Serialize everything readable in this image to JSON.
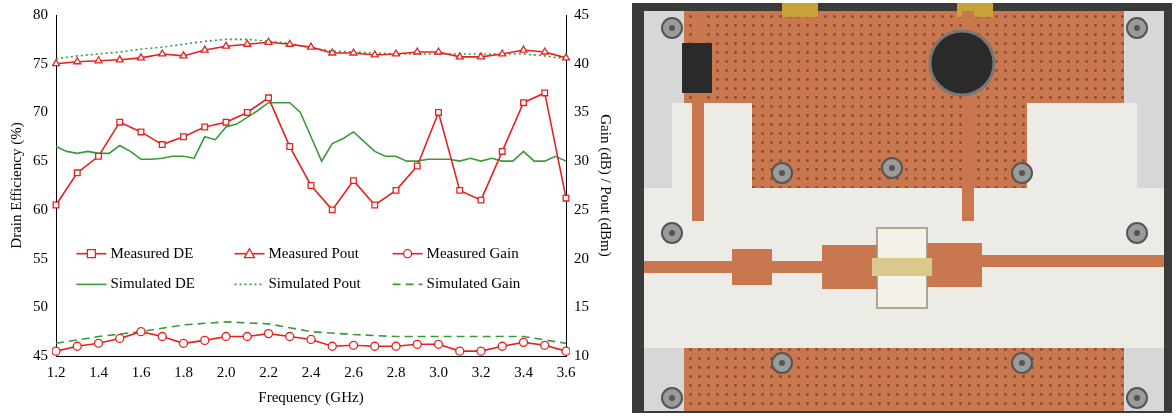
{
  "chart_data": {
    "type": "line",
    "x_label": "Frequency (GHz)",
    "y_label": "Drain Efficiency (%)",
    "y2_label": "Gain (dB) / Pout (dBm)",
    "xlim": [
      1.2,
      3.6
    ],
    "xticks": [
      1.2,
      1.4,
      1.6,
      1.8,
      {
        "value": 2,
        "label": "2.0"
      },
      2.2,
      2.4,
      2.6,
      2.8,
      {
        "value": 3,
        "label": "3.0"
      },
      3.2,
      3.4,
      3.6
    ],
    "ylim": [
      45,
      80
    ],
    "yticks": [
      45,
      50,
      55,
      60,
      65,
      70,
      75,
      80
    ],
    "y2lim": [
      10,
      45
    ],
    "y2ticks": [
      10,
      15,
      20,
      25,
      30,
      35,
      40,
      45
    ],
    "grid": false,
    "legend": "center left",
    "series": [
      {
        "name": "Measured DE",
        "color": "#e3231f",
        "marker": "square",
        "line_style": "solid",
        "x": [
          1.2,
          1.3,
          1.4,
          1.5,
          1.6,
          1.7,
          1.8,
          1.9,
          2.0,
          2.1,
          2.2,
          2.3,
          2.4,
          2.5,
          2.6,
          2.7,
          2.8,
          2.9,
          3.0,
          3.1,
          3.2,
          3.3,
          3.4,
          3.5,
          3.6
        ],
        "values": [
          60.5,
          63.8,
          65.5,
          69,
          68,
          66.7,
          67.5,
          68.5,
          69,
          70,
          71.5,
          66.5,
          62.5,
          60,
          63,
          60.5,
          62,
          64.5,
          70,
          62,
          61,
          66,
          71,
          72,
          61.2
        ]
      },
      {
        "name": "Measured Pout",
        "color": "#e3231f",
        "marker": "triangle",
        "line_style": "solid",
        "axis": "y2",
        "x": [
          1.2,
          1.3,
          1.4,
          1.5,
          1.6,
          1.7,
          1.8,
          1.9,
          2.0,
          2.1,
          2.2,
          2.3,
          2.4,
          2.5,
          2.6,
          2.7,
          2.8,
          2.9,
          3.0,
          3.1,
          3.2,
          3.3,
          3.4,
          3.5,
          3.6
        ],
        "values": [
          40,
          40.2,
          40.3,
          40.4,
          40.6,
          41,
          40.8,
          41.4,
          41.8,
          42,
          42.2,
          42,
          41.7,
          41.1,
          41.1,
          40.9,
          41,
          41.2,
          41.2,
          40.7,
          40.7,
          41,
          41.4,
          41.2,
          40.6
        ]
      },
      {
        "name": "Measured Gain",
        "color": "#e3231f",
        "marker": "circle",
        "line_style": "solid",
        "axis": "y2",
        "x": [
          1.2,
          1.3,
          1.4,
          1.5,
          1.6,
          1.7,
          1.8,
          1.9,
          2.0,
          2.1,
          2.2,
          2.3,
          2.4,
          2.5,
          2.6,
          2.7,
          2.8,
          2.9,
          3.0,
          3.1,
          3.2,
          3.3,
          3.4,
          3.5,
          3.6
        ],
        "values": [
          10.5,
          11,
          11.3,
          11.8,
          12.5,
          12,
          11.3,
          11.6,
          12,
          12,
          12.3,
          12,
          11.7,
          11,
          11.1,
          11,
          11,
          11.2,
          11.2,
          10.5,
          10.5,
          11,
          11.4,
          11.1,
          10.5
        ]
      },
      {
        "name": "Simulated DE",
        "color": "#3a9a3a",
        "marker": "none",
        "line_style": "solid",
        "x": [
          1.2,
          1.25,
          1.3,
          1.35,
          1.4,
          1.45,
          1.5,
          1.55,
          1.6,
          1.65,
          1.7,
          1.75,
          1.8,
          1.85,
          1.9,
          1.95,
          2.0,
          2.05,
          2.1,
          2.15,
          2.2,
          2.25,
          2.3,
          2.35,
          2.4,
          2.45,
          2.5,
          2.55,
          2.6,
          2.65,
          2.7,
          2.75,
          2.8,
          2.85,
          2.9,
          2.95,
          3.0,
          3.05,
          3.1,
          3.15,
          3.2,
          3.25,
          3.3,
          3.35,
          3.4,
          3.45,
          3.5,
          3.55,
          3.6
        ],
        "values": [
          66.5,
          66,
          65.8,
          66,
          65.8,
          65.8,
          66.6,
          66,
          65.2,
          65.2,
          65.3,
          65.5,
          65.5,
          65.3,
          67.5,
          67.2,
          68.5,
          68.8,
          69.5,
          70.2,
          71,
          71,
          71,
          70,
          67.5,
          65,
          66.8,
          67.3,
          68,
          67,
          66,
          65.5,
          65.5,
          65,
          65,
          65.2,
          65.2,
          65.2,
          65,
          65.3,
          65,
          65.3,
          65,
          65,
          66,
          65,
          65,
          65.5,
          65
        ]
      },
      {
        "name": "Simulated Pout",
        "color": "#3a9a3a",
        "marker": "none",
        "line_style": "dotted",
        "axis": "y2",
        "x": [
          1.2,
          1.3,
          1.4,
          1.5,
          1.6,
          1.7,
          1.8,
          1.9,
          2.0,
          2.1,
          2.2,
          2.3,
          2.4,
          2.5,
          2.6,
          2.7,
          2.8,
          2.9,
          3.0,
          3.1,
          3.2,
          3.3,
          3.4,
          3.5,
          3.6
        ],
        "values": [
          40.5,
          40.8,
          41,
          41.2,
          41.5,
          41.7,
          42,
          42.3,
          42.5,
          42.5,
          42.3,
          42.1,
          41.6,
          41.3,
          41.2,
          41.1,
          41,
          41,
          41,
          41,
          41,
          41,
          41,
          40.8,
          40.5
        ]
      },
      {
        "name": "Simulated Gain",
        "color": "#3a9a3a",
        "marker": "none",
        "line_style": "dashed",
        "axis": "y2",
        "x": [
          1.2,
          1.4,
          1.6,
          1.8,
          2.0,
          2.2,
          2.4,
          2.6,
          2.8,
          3.0,
          3.2,
          3.4,
          3.6
        ],
        "values": [
          11.3,
          12,
          12.5,
          13.2,
          13.5,
          13.3,
          12.5,
          12.2,
          12,
          12,
          12,
          12,
          11.3
        ]
      }
    ]
  }
}
